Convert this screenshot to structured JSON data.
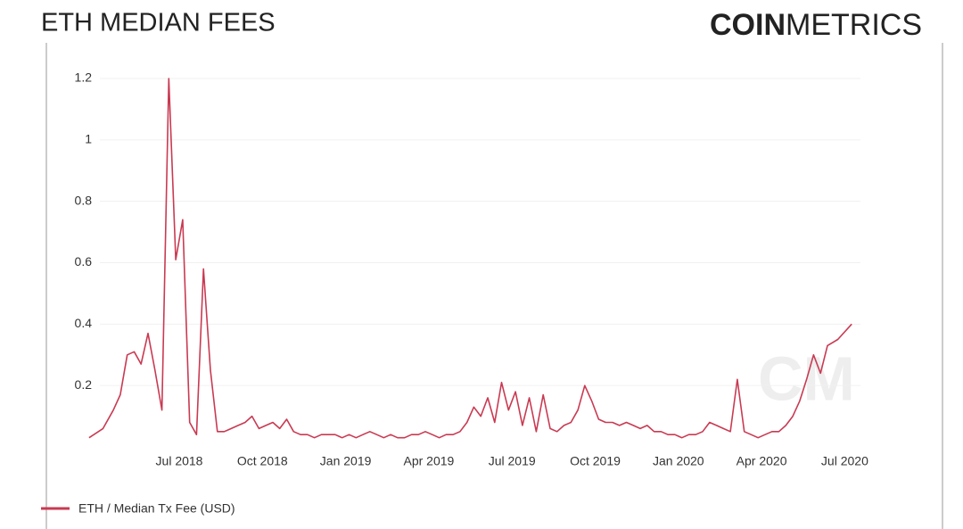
{
  "logo": {
    "bold": "COIN",
    "light": "METRICS"
  },
  "chart_data": {
    "type": "line",
    "title": "ETH MEDIAN FEES",
    "x": [
      "2018-04",
      "2018-04",
      "2018-05",
      "2018-05",
      "2018-05",
      "2018-05",
      "2018-06",
      "2018-06",
      "2018-06",
      "2018-06",
      "2018-07",
      "2018-07",
      "2018-07",
      "2018-07",
      "2018-08",
      "2018-08",
      "2018-08",
      "2018-08",
      "2018-09",
      "2018-09",
      "2018-09",
      "2018-09",
      "2018-10",
      "2018-10",
      "2018-10",
      "2018-10",
      "2018-11",
      "2018-11",
      "2018-11",
      "2018-11",
      "2018-12",
      "2018-12",
      "2018-12",
      "2018-12",
      "2019-01",
      "2019-01",
      "2019-01",
      "2019-01",
      "2019-02",
      "2019-02",
      "2019-02",
      "2019-02",
      "2019-03",
      "2019-03",
      "2019-03",
      "2019-03",
      "2019-04",
      "2019-04",
      "2019-04",
      "2019-04",
      "2019-05",
      "2019-05",
      "2019-05",
      "2019-05",
      "2019-06",
      "2019-06",
      "2019-06",
      "2019-06",
      "2019-07",
      "2019-07",
      "2019-07",
      "2019-07",
      "2019-08",
      "2019-08",
      "2019-08",
      "2019-08",
      "2019-09",
      "2019-09",
      "2019-09",
      "2019-09",
      "2019-10",
      "2019-10",
      "2019-10",
      "2019-10",
      "2019-11",
      "2019-11",
      "2019-11",
      "2019-11",
      "2019-12",
      "2019-12",
      "2019-12",
      "2019-12",
      "2020-01",
      "2020-01",
      "2020-01",
      "2020-01",
      "2020-02",
      "2020-02",
      "2020-02",
      "2020-02",
      "2020-03",
      "2020-03",
      "2020-03",
      "2020-03",
      "2020-04",
      "2020-04",
      "2020-04",
      "2020-04",
      "2020-05",
      "2020-05",
      "2020-05",
      "2020-05",
      "2020-06",
      "2020-06",
      "2020-06",
      "2020-06",
      "2020-07",
      "2020-07"
    ],
    "series": [
      {
        "name": "ETH / Median Tx Fee (USD)",
        "color": "#c93a52",
        "values": [
          0.03,
          0.06,
          0.12,
          0.17,
          0.3,
          0.31,
          0.27,
          0.37,
          0.25,
          0.12,
          1.2,
          0.61,
          0.74,
          0.08,
          0.04,
          0.58,
          0.25,
          0.05,
          0.05,
          0.06,
          0.07,
          0.08,
          0.1,
          0.06,
          0.07,
          0.08,
          0.06,
          0.09,
          0.05,
          0.04,
          0.04,
          0.03,
          0.04,
          0.04,
          0.04,
          0.03,
          0.04,
          0.03,
          0.04,
          0.05,
          0.04,
          0.03,
          0.04,
          0.03,
          0.03,
          0.04,
          0.04,
          0.05,
          0.04,
          0.03,
          0.04,
          0.04,
          0.05,
          0.08,
          0.13,
          0.1,
          0.16,
          0.08,
          0.21,
          0.12,
          0.18,
          0.07,
          0.16,
          0.05,
          0.17,
          0.06,
          0.05,
          0.07,
          0.08,
          0.12,
          0.2,
          0.15,
          0.09,
          0.08,
          0.08,
          0.07,
          0.08,
          0.07,
          0.06,
          0.07,
          0.05,
          0.05,
          0.04,
          0.04,
          0.03,
          0.04,
          0.04,
          0.05,
          0.08,
          0.07,
          0.06,
          0.05,
          0.22,
          0.05,
          0.04,
          0.03,
          0.04,
          0.05,
          0.05,
          0.07,
          0.1,
          0.15,
          0.22,
          0.3,
          0.24,
          0.33,
          0.35,
          0.4
        ]
      }
    ],
    "xticks": [
      {
        "value": "2018-07",
        "label": "Jul 2018"
      },
      {
        "value": "2018-10",
        "label": "Oct 2018"
      },
      {
        "value": "2019-01",
        "label": "Jan 2019"
      },
      {
        "value": "2019-04",
        "label": "Apr 2019"
      },
      {
        "value": "2019-07",
        "label": "Jul 2019"
      },
      {
        "value": "2019-10",
        "label": "Oct 2019"
      },
      {
        "value": "2020-01",
        "label": "Jan 2020"
      },
      {
        "value": "2020-04",
        "label": "Apr 2020"
      },
      {
        "value": "2020-07",
        "label": "Jul 2020"
      }
    ],
    "ylim": [
      0,
      1.2
    ],
    "yticks": [
      0.2,
      0.4,
      0.6,
      0.8,
      1,
      1.2
    ],
    "grid": true
  }
}
